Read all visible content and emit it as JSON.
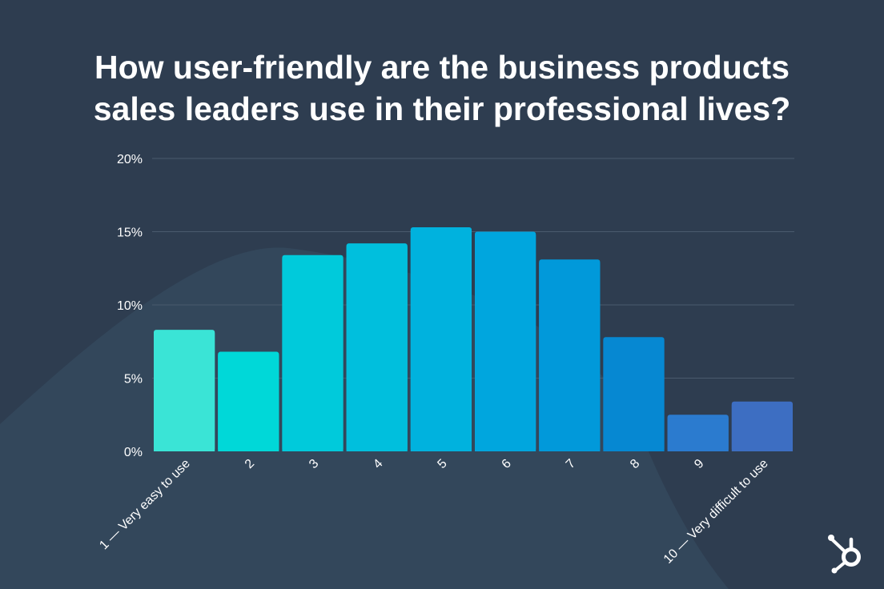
{
  "chart_data": {
    "type": "bar",
    "title_lines": [
      "How user-friendly are the business products",
      "sales leaders use in their professional lives?"
    ],
    "categories": [
      "1 — Very easy to use",
      "2",
      "3",
      "4",
      "5",
      "6",
      "7",
      "8",
      "9",
      "10 — Very difficult to use"
    ],
    "values": [
      8.3,
      6.8,
      13.4,
      14.2,
      15.3,
      15.0,
      13.1,
      7.8,
      2.5,
      3.4
    ],
    "y_ticks": [
      "0%",
      "5%",
      "10%",
      "15%",
      "20%"
    ],
    "ylim": [
      0,
      20
    ],
    "grid": true,
    "bar_colors": [
      "#3ae4d6",
      "#00d8d8",
      "#00cadb",
      "#00bfdd",
      "#00b2de",
      "#00a6de",
      "#0199da",
      "#0688d2",
      "#2b7bcf",
      "#3d6ec2"
    ]
  },
  "colors": {
    "background": "#2e3d50",
    "background_shape": "#33475b",
    "grid": "#4a5b6e",
    "text": "#ffffff"
  },
  "logo": {
    "icon": "hubspot-sprocket-icon"
  }
}
